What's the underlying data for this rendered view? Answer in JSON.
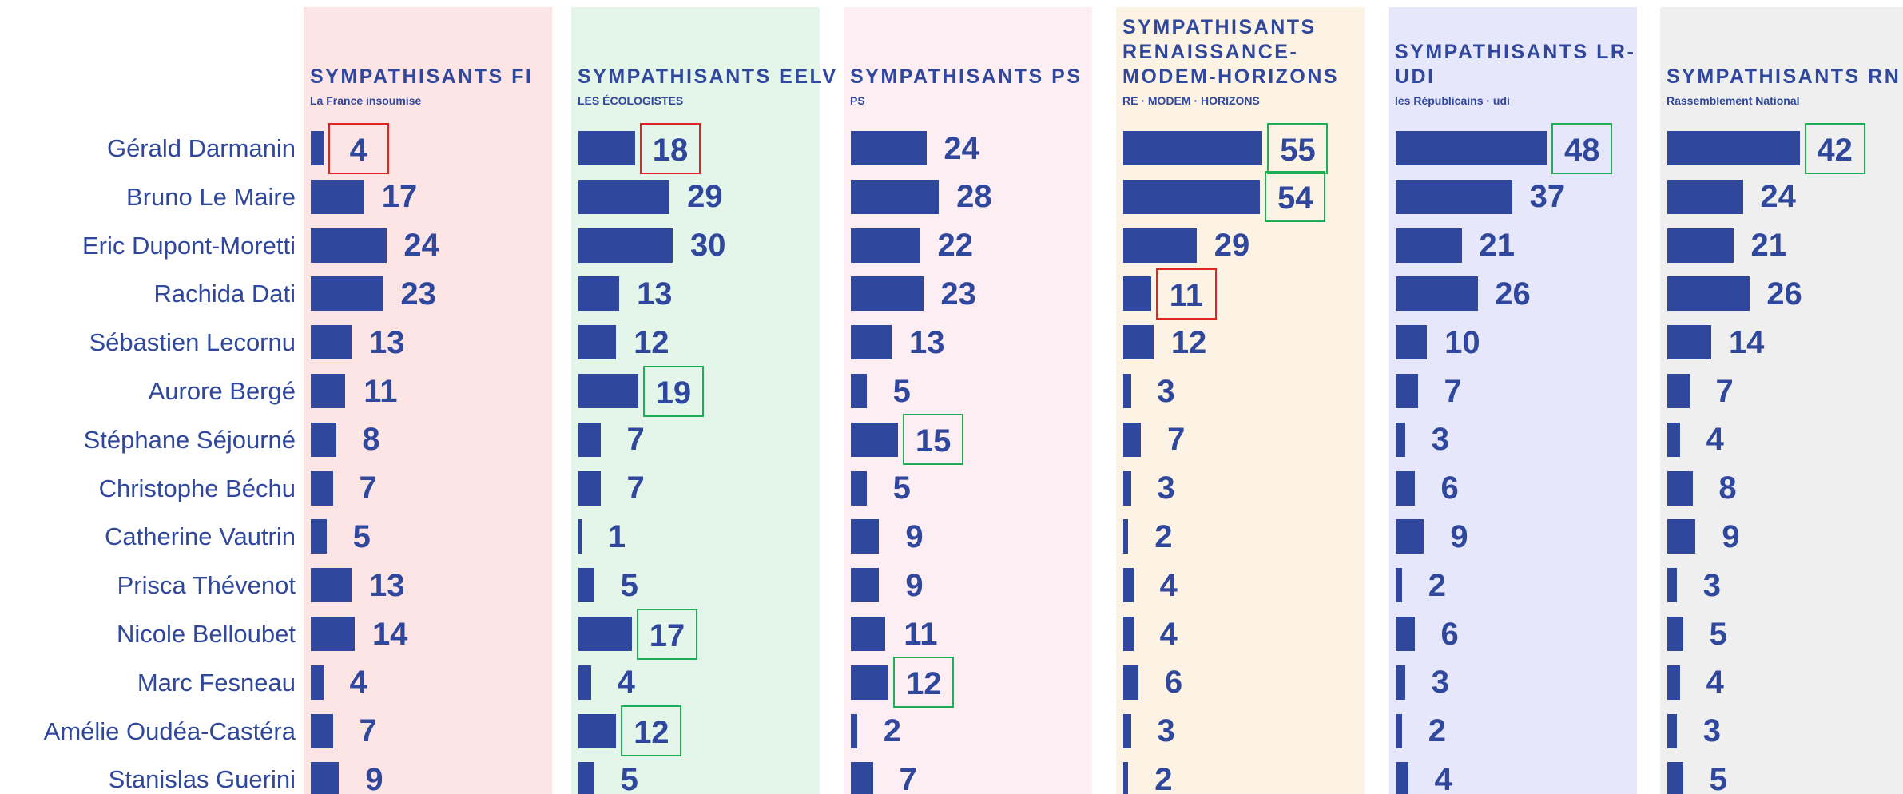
{
  "chart_data": {
    "type": "bar",
    "categories": [
      "Gérald Darmanin",
      "Bruno Le Maire",
      "Eric Dupont-Moretti",
      "Rachida Dati",
      "Sébastien Lecornu",
      "Aurore Bergé",
      "Stéphane Séjourné",
      "Christophe Béchu",
      "Catherine Vautrin",
      "Prisca Thévenot",
      "Nicole Belloubet",
      "Marc Fesneau",
      "Amélie Oudéa-Castéra",
      "Stanislas Guerini"
    ],
    "bar_color": "#2f479d",
    "series": [
      {
        "name": "SYMPATHISANTS FI",
        "logo": "La France insoumise",
        "background": "#fde5e5",
        "xlim": [
          0,
          70
        ],
        "values": [
          4,
          17,
          24,
          23,
          13,
          11,
          8,
          7,
          5,
          13,
          14,
          4,
          7,
          9
        ],
        "boxes": {
          "red": [
            0
          ],
          "green": []
        }
      },
      {
        "name": "SYMPATHISANTS EELV",
        "logo": "LES ÉCOLOGISTES",
        "background": "#e4f5ea",
        "xlim": [
          0,
          70
        ],
        "values": [
          18,
          29,
          30,
          13,
          12,
          19,
          7,
          7,
          1,
          5,
          17,
          4,
          12,
          5
        ],
        "boxes": {
          "red": [
            0
          ],
          "green": [
            5,
            10,
            12
          ]
        }
      },
      {
        "name": "SYMPATHISANTS PS",
        "logo": "PS",
        "background": "#fdeef4",
        "xlim": [
          0,
          70
        ],
        "values": [
          24,
          28,
          22,
          23,
          13,
          5,
          15,
          5,
          9,
          9,
          11,
          12,
          2,
          7
        ],
        "boxes": {
          "red": [],
          "green": [
            6,
            11
          ]
        }
      },
      {
        "name": "SYMPATHISANTS RENAISSANCE-MODEM-HORIZONS",
        "logo": "RE · MODEM · HORIZONS",
        "background": "#fdf3e5",
        "xlim": [
          0,
          87
        ],
        "values": [
          55,
          54,
          29,
          11,
          12,
          3,
          7,
          3,
          2,
          4,
          4,
          6,
          3,
          2
        ],
        "boxes": {
          "red": [
            3
          ],
          "green": [
            0,
            1
          ]
        }
      },
      {
        "name": "SYMPATHISANTS LR-UDI",
        "logo": "les Républicains · udi",
        "background": "#e7e7fb",
        "xlim": [
          0,
          70
        ],
        "values": [
          48,
          37,
          21,
          26,
          10,
          7,
          3,
          6,
          9,
          2,
          6,
          3,
          2,
          4
        ],
        "boxes": {
          "red": [],
          "green": [
            0
          ]
        }
      },
      {
        "name": "SYMPATHISANTS RN",
        "logo": "Rassemblement National",
        "background": "#efefef",
        "xlim": [
          0,
          70
        ],
        "values": [
          42,
          24,
          21,
          26,
          14,
          7,
          4,
          8,
          9,
          3,
          5,
          4,
          3,
          5
        ],
        "boxes": {
          "red": [],
          "green": [
            0
          ]
        }
      }
    ]
  }
}
